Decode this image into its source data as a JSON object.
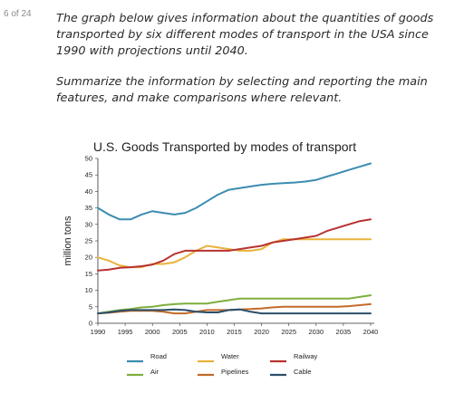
{
  "page": {
    "counter": "6 of 24"
  },
  "task": {
    "paragraph1": "The graph below gives information about the quantities of goods transported by six different modes of transport in the USA since 1990 with projections until 2040.",
    "paragraph2": "Summarize the information by selecting and reporting the main features, and make comparisons where relevant."
  },
  "chart_data": {
    "type": "line",
    "title": "U.S. Goods Transported by modes of transport",
    "ylabel": "million tons",
    "xlabel": "",
    "xlim": [
      1990,
      2040
    ],
    "ylim": [
      0,
      50
    ],
    "x_ticks": [
      1990,
      1995,
      2000,
      2005,
      2010,
      2015,
      2020,
      2025,
      2030,
      2035,
      2040
    ],
    "y_ticks": [
      0,
      5,
      10,
      15,
      20,
      25,
      30,
      35,
      40,
      45,
      50
    ],
    "grid": false,
    "legend_position": "bottom",
    "series": [
      {
        "name": "Road",
        "color": "#3b8db0",
        "points": [
          [
            1990,
            35
          ],
          [
            1992,
            33
          ],
          [
            1994,
            31.5
          ],
          [
            1996,
            31.5
          ],
          [
            1998,
            33
          ],
          [
            2000,
            34
          ],
          [
            2002,
            33.5
          ],
          [
            2004,
            33
          ],
          [
            2006,
            33.5
          ],
          [
            2008,
            35
          ],
          [
            2010,
            37
          ],
          [
            2012,
            39
          ],
          [
            2014,
            40.5
          ],
          [
            2016,
            41
          ],
          [
            2018,
            41.5
          ],
          [
            2020,
            42
          ],
          [
            2022,
            42.3
          ],
          [
            2024,
            42.5
          ],
          [
            2026,
            42.7
          ],
          [
            2028,
            43
          ],
          [
            2030,
            43.5
          ],
          [
            2032,
            44.5
          ],
          [
            2034,
            45.5
          ],
          [
            2036,
            46.5
          ],
          [
            2038,
            47.5
          ],
          [
            2040,
            48.5
          ]
        ]
      },
      {
        "name": "Water",
        "color": "#e8b23a",
        "points": [
          [
            1990,
            20
          ],
          [
            1992,
            19
          ],
          [
            1994,
            17.5
          ],
          [
            1996,
            17
          ],
          [
            1998,
            17
          ],
          [
            2000,
            18
          ],
          [
            2002,
            18
          ],
          [
            2004,
            18.5
          ],
          [
            2006,
            20
          ],
          [
            2008,
            22
          ],
          [
            2010,
            23.5
          ],
          [
            2012,
            23
          ],
          [
            2014,
            22.5
          ],
          [
            2016,
            22
          ],
          [
            2018,
            22
          ],
          [
            2020,
            22.5
          ],
          [
            2022,
            24.5
          ],
          [
            2024,
            25.5
          ],
          [
            2026,
            25.5
          ],
          [
            2028,
            25.5
          ],
          [
            2030,
            25.5
          ],
          [
            2032,
            25.5
          ],
          [
            2034,
            25.5
          ],
          [
            2036,
            25.5
          ],
          [
            2038,
            25.5
          ],
          [
            2040,
            25.5
          ]
        ]
      },
      {
        "name": "Railway",
        "color": "#b83232",
        "points": [
          [
            1990,
            16
          ],
          [
            1992,
            16.3
          ],
          [
            1994,
            16.8
          ],
          [
            1996,
            17
          ],
          [
            1998,
            17.3
          ],
          [
            2000,
            17.8
          ],
          [
            2002,
            19
          ],
          [
            2004,
            21
          ],
          [
            2006,
            22
          ],
          [
            2008,
            22
          ],
          [
            2010,
            22
          ],
          [
            2012,
            22
          ],
          [
            2014,
            22
          ],
          [
            2016,
            22.5
          ],
          [
            2018,
            23
          ],
          [
            2020,
            23.5
          ],
          [
            2022,
            24.5
          ],
          [
            2024,
            25
          ],
          [
            2026,
            25.5
          ],
          [
            2028,
            26
          ],
          [
            2030,
            26.5
          ],
          [
            2032,
            28
          ],
          [
            2034,
            29
          ],
          [
            2036,
            30
          ],
          [
            2038,
            31
          ],
          [
            2040,
            31.5
          ]
        ]
      },
      {
        "name": "Air",
        "color": "#7fae3e",
        "points": [
          [
            1990,
            3
          ],
          [
            1992,
            3.5
          ],
          [
            1994,
            4
          ],
          [
            1996,
            4.3
          ],
          [
            1998,
            4.8
          ],
          [
            2000,
            5
          ],
          [
            2002,
            5.5
          ],
          [
            2004,
            5.8
          ],
          [
            2006,
            6
          ],
          [
            2008,
            6
          ],
          [
            2010,
            6
          ],
          [
            2012,
            6.5
          ],
          [
            2014,
            7
          ],
          [
            2016,
            7.5
          ],
          [
            2018,
            7.5
          ],
          [
            2020,
            7.5
          ],
          [
            2022,
            7.5
          ],
          [
            2024,
            7.5
          ],
          [
            2026,
            7.5
          ],
          [
            2028,
            7.5
          ],
          [
            2030,
            7.5
          ],
          [
            2032,
            7.5
          ],
          [
            2034,
            7.5
          ],
          [
            2036,
            7.5
          ],
          [
            2038,
            8
          ],
          [
            2040,
            8.5
          ]
        ]
      },
      {
        "name": "Pipelines",
        "color": "#c46a28",
        "points": [
          [
            1990,
            3
          ],
          [
            1992,
            3.2
          ],
          [
            1994,
            3.5
          ],
          [
            1996,
            3.8
          ],
          [
            1998,
            3.8
          ],
          [
            2000,
            3.8
          ],
          [
            2002,
            3.5
          ],
          [
            2004,
            3
          ],
          [
            2006,
            3
          ],
          [
            2008,
            3.5
          ],
          [
            2010,
            4
          ],
          [
            2012,
            4
          ],
          [
            2014,
            4
          ],
          [
            2016,
            4.2
          ],
          [
            2018,
            4.3
          ],
          [
            2020,
            4.5
          ],
          [
            2022,
            4.8
          ],
          [
            2024,
            5
          ],
          [
            2026,
            5
          ],
          [
            2028,
            5
          ],
          [
            2030,
            5
          ],
          [
            2032,
            5
          ],
          [
            2034,
            5
          ],
          [
            2036,
            5.2
          ],
          [
            2038,
            5.5
          ],
          [
            2040,
            5.8
          ]
        ]
      },
      {
        "name": "Cable",
        "color": "#2b4f6b",
        "points": [
          [
            1990,
            3
          ],
          [
            1992,
            3.3
          ],
          [
            1994,
            3.8
          ],
          [
            1996,
            4
          ],
          [
            1998,
            4
          ],
          [
            2000,
            4
          ],
          [
            2002,
            4
          ],
          [
            2004,
            4.2
          ],
          [
            2006,
            4
          ],
          [
            2008,
            3.5
          ],
          [
            2010,
            3.3
          ],
          [
            2012,
            3.3
          ],
          [
            2014,
            4
          ],
          [
            2016,
            4.2
          ],
          [
            2018,
            3.5
          ],
          [
            2020,
            3
          ],
          [
            2022,
            3
          ],
          [
            2024,
            3
          ],
          [
            2026,
            3
          ],
          [
            2028,
            3
          ],
          [
            2030,
            3
          ],
          [
            2032,
            3
          ],
          [
            2034,
            3
          ],
          [
            2036,
            3
          ],
          [
            2038,
            3
          ],
          [
            2040,
            3
          ]
        ]
      }
    ]
  }
}
